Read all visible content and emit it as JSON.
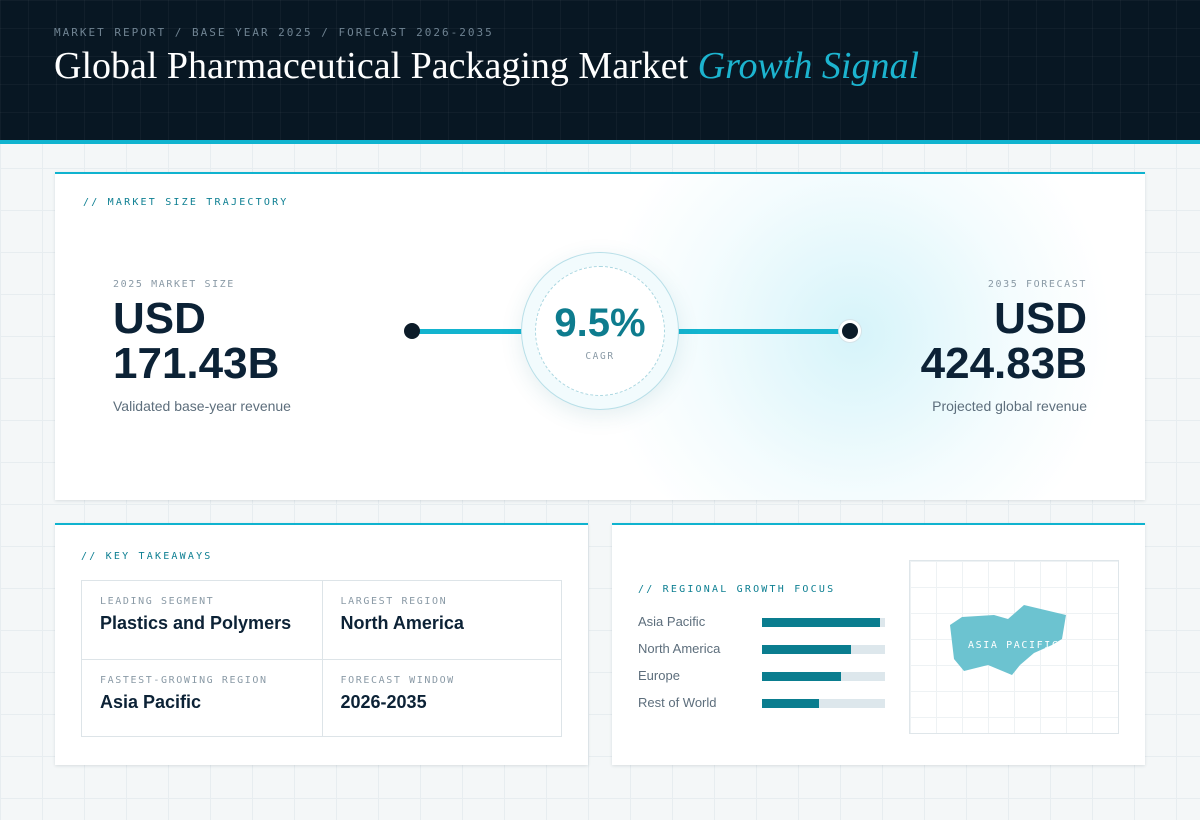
{
  "header": {
    "eyebrow": "MARKET REPORT / BASE YEAR 2025 / FORECAST 2026-2035",
    "title_main": "Global Pharmaceutical Packaging Market",
    "title_accent": "Growth Signal"
  },
  "trajectory": {
    "section_label": "// MARKET SIZE TRAJECTORY",
    "start": {
      "label": "2025 MARKET SIZE",
      "currency": "USD",
      "value": "171.43B",
      "caption": "Validated base-year revenue"
    },
    "cagr": {
      "value": "9.5%",
      "label": "CAGR"
    },
    "end": {
      "label": "2035 FORECAST",
      "currency": "USD",
      "value": "424.83B",
      "caption": "Projected global revenue"
    }
  },
  "takeaways": {
    "section_label": "// KEY TAKEAWAYS",
    "items": [
      {
        "key": "LEADING SEGMENT",
        "value": "Plastics and Polymers"
      },
      {
        "key": "LARGEST REGION",
        "value": "North America"
      },
      {
        "key": "FASTEST-GROWING REGION",
        "value": "Asia Pacific"
      },
      {
        "key": "FORECAST WINDOW",
        "value": "2026-2035"
      }
    ]
  },
  "regional": {
    "section_label": "// REGIONAL GROWTH FOCUS",
    "bars": [
      {
        "name": "Asia Pacific",
        "level": 0.96
      },
      {
        "name": "North America",
        "level": 0.72
      },
      {
        "name": "Europe",
        "level": 0.64
      },
      {
        "name": "Rest of World",
        "level": 0.46
      }
    ],
    "map_label": "ASIA PACIFIC",
    "colors": {
      "bar": "#0a7d8f",
      "track": "#dde7ec",
      "map_shape": "#6cc3d0"
    }
  }
}
